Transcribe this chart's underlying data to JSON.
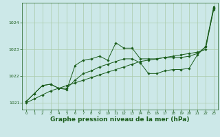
{
  "background_color": "#cce8e8",
  "grid_color": "#aacaaa",
  "line_color": "#1a5c1a",
  "xlim": [
    -0.5,
    23.5
  ],
  "ylim": [
    1020.75,
    1024.75
  ],
  "yticks": [
    1021,
    1022,
    1023,
    1024
  ],
  "xticks": [
    0,
    1,
    2,
    3,
    4,
    5,
    6,
    7,
    8,
    9,
    10,
    11,
    12,
    13,
    14,
    15,
    16,
    17,
    18,
    19,
    20,
    21,
    22,
    23
  ],
  "xlabel": "Graphe pression niveau de la mer (hPa)",
  "xlabel_fontsize": 6.5,
  "series_smooth": {
    "x": [
      0,
      1,
      2,
      3,
      4,
      5,
      6,
      7,
      8,
      9,
      10,
      11,
      12,
      13,
      14,
      15,
      16,
      17,
      18,
      19,
      20,
      21,
      22,
      23
    ],
    "y": [
      1021.0,
      1021.15,
      1021.3,
      1021.45,
      1021.55,
      1021.65,
      1021.75,
      1021.85,
      1021.95,
      1022.05,
      1022.15,
      1022.25,
      1022.35,
      1022.45,
      1022.55,
      1022.6,
      1022.65,
      1022.7,
      1022.75,
      1022.8,
      1022.85,
      1022.9,
      1023.0,
      1024.55
    ]
  },
  "series_mid": {
    "x": [
      0,
      1,
      2,
      3,
      4,
      5,
      6,
      7,
      8,
      9,
      10,
      11,
      12,
      13,
      14,
      15,
      16,
      17,
      18,
      19,
      20,
      21,
      22,
      23
    ],
    "y": [
      1021.05,
      1021.35,
      1021.65,
      1021.7,
      1021.55,
      1021.55,
      1021.85,
      1022.1,
      1022.2,
      1022.35,
      1022.45,
      1022.55,
      1022.65,
      1022.65,
      1022.5,
      1022.1,
      1022.1,
      1022.2,
      1022.25,
      1022.25,
      1022.3,
      1022.8,
      1023.1,
      1024.5
    ]
  },
  "series_top": {
    "x": [
      0,
      1,
      2,
      3,
      4,
      5,
      6,
      7,
      8,
      9,
      10,
      11,
      12,
      13,
      14,
      15,
      16,
      17,
      18,
      19,
      20,
      21,
      22,
      23
    ],
    "y": [
      1021.05,
      1021.35,
      1021.65,
      1021.7,
      1021.55,
      1021.5,
      1022.4,
      1022.6,
      1022.65,
      1022.75,
      1022.6,
      1023.25,
      1023.05,
      1023.05,
      1022.65,
      1022.65,
      1022.65,
      1022.7,
      1022.7,
      1022.7,
      1022.75,
      1022.85,
      1023.1,
      1024.6
    ]
  }
}
